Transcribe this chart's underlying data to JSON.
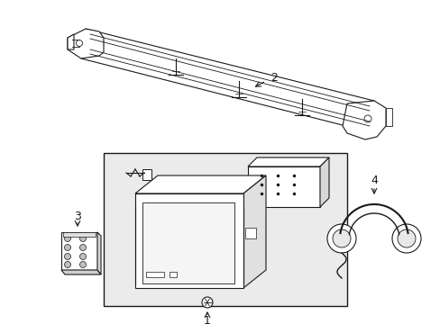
{
  "background_color": "#ffffff",
  "line_color": "#1a1a1a",
  "fill_color": "#f0f0f0",
  "label_1": "1",
  "label_2": "2",
  "label_3": "3",
  "label_4": "4",
  "label_fontsize": 9,
  "figsize": [
    4.89,
    3.6
  ],
  "dpi": 100
}
